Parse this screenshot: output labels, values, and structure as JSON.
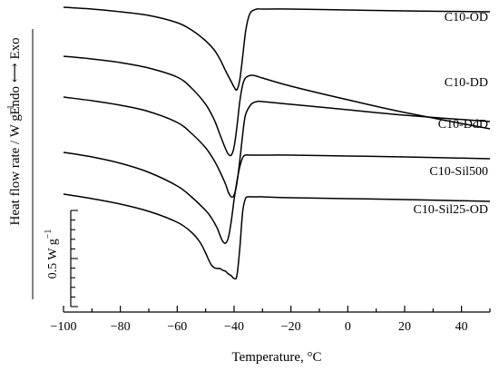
{
  "chart_data": {
    "type": "line",
    "xlabel": "Temperature, °C",
    "ylabel": "Heat flow rate / W g",
    "ylabel_sup": "−1",
    "direction_label": {
      "endo": "Endo",
      "exo": "Exo",
      "arrow": "⟷"
    },
    "xlim": [
      -100,
      50
    ],
    "x_ticks": [
      -100,
      -80,
      -60,
      -40,
      -20,
      0,
      20,
      40
    ],
    "x_tick_labels": [
      "−100",
      "−80",
      "−60",
      "−40",
      "−20",
      "0",
      "20",
      "40"
    ],
    "scale_bar": {
      "label": "0.5 W g",
      "label_sup": "−1",
      "value": 0.5,
      "unit": "W g-1"
    },
    "grid": false,
    "legend": "labels beside curves at right",
    "series": [
      {
        "name": "C10-OD",
        "x": [
          -100,
          -90,
          -80,
          -70,
          -60,
          -55,
          -50,
          -47,
          -45,
          -43,
          -41,
          -40,
          -39,
          -38,
          -37,
          -36,
          -35,
          -34,
          -32,
          -30,
          -20,
          0,
          20,
          50
        ],
        "y": [
          0,
          -0.02,
          -0.05,
          -0.09,
          -0.17,
          -0.25,
          -0.37,
          -0.47,
          -0.57,
          -0.7,
          -0.82,
          -0.88,
          -0.91,
          -0.8,
          -0.55,
          -0.28,
          -0.12,
          -0.05,
          -0.02,
          -0.02,
          -0.02,
          -0.03,
          -0.04,
          -0.05
        ]
      },
      {
        "name": "C10-DD",
        "x": [
          -100,
          -90,
          -80,
          -70,
          -60,
          -55,
          -50,
          -47,
          -45,
          -43,
          -42,
          -41,
          -40,
          -39,
          -38,
          -37,
          -36,
          -34,
          -32,
          -30,
          -20,
          0,
          20,
          50
        ],
        "y": [
          0,
          -0.03,
          -0.07,
          -0.13,
          -0.23,
          -0.35,
          -0.53,
          -0.7,
          -0.86,
          -1.02,
          -1.08,
          -1.09,
          -1.0,
          -0.78,
          -0.5,
          -0.32,
          -0.24,
          -0.21,
          -0.22,
          -0.24,
          -0.33,
          -0.48,
          -0.62,
          -0.8
        ]
      },
      {
        "name": "C10-DdD",
        "x": [
          -100,
          -90,
          -80,
          -70,
          -60,
          -55,
          -50,
          -47,
          -45,
          -43,
          -42,
          -41,
          -40,
          -39,
          -38,
          -37,
          -36,
          -34,
          -32,
          -30,
          -20,
          0,
          20,
          50
        ],
        "y": [
          0,
          -0.04,
          -0.09,
          -0.16,
          -0.28,
          -0.4,
          -0.56,
          -0.7,
          -0.82,
          -0.96,
          -1.05,
          -1.1,
          -1.08,
          -0.95,
          -0.7,
          -0.42,
          -0.2,
          -0.08,
          -0.05,
          -0.05,
          -0.08,
          -0.14,
          -0.2,
          -0.27
        ]
      },
      {
        "name": "C10-Sil500",
        "x": [
          -100,
          -90,
          -80,
          -70,
          -60,
          -55,
          -50,
          -48,
          -46,
          -45,
          -44,
          -43,
          -42,
          -41,
          -40,
          -39,
          -38,
          -37,
          -36,
          -34,
          -30,
          -20,
          0,
          20,
          50
        ],
        "y": [
          0,
          -0.05,
          -0.12,
          -0.22,
          -0.37,
          -0.49,
          -0.64,
          -0.72,
          -0.83,
          -0.91,
          -0.98,
          -1.0,
          -0.94,
          -0.76,
          -0.52,
          -0.32,
          -0.16,
          -0.06,
          -0.03,
          -0.03,
          -0.03,
          -0.03,
          -0.04,
          -0.05,
          -0.07
        ]
      },
      {
        "name": "C10-Sil25-OD",
        "x": [
          -100,
          -90,
          -80,
          -70,
          -60,
          -55,
          -52,
          -50,
          -49,
          -48,
          -47,
          -46,
          -45,
          -44,
          -43,
          -42,
          -41,
          -40,
          -39,
          -38,
          -37,
          -36,
          -35,
          -34,
          -32,
          -30,
          -20,
          0,
          20,
          50
        ],
        "y": [
          0,
          -0.05,
          -0.11,
          -0.19,
          -0.31,
          -0.42,
          -0.53,
          -0.65,
          -0.72,
          -0.78,
          -0.81,
          -0.82,
          -0.82,
          -0.84,
          -0.85,
          -0.88,
          -0.9,
          -0.93,
          -0.9,
          -0.6,
          -0.2,
          -0.05,
          -0.03,
          -0.03,
          -0.03,
          -0.03,
          -0.04,
          -0.05,
          -0.06,
          -0.08
        ]
      }
    ]
  }
}
